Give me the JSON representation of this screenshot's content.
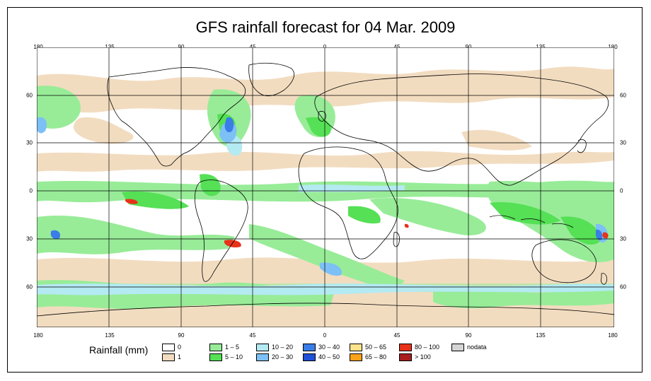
{
  "title": "GFS rainfall forecast for 04 Mar. 2009",
  "axes": {
    "longitude_ticks": [
      "180",
      "135",
      "90",
      "45",
      "0",
      "45",
      "90",
      "135",
      "180"
    ],
    "latitude_ticks": [
      "60",
      "30",
      "0",
      "30",
      "60"
    ]
  },
  "legend": {
    "title": "Rainfall (mm)",
    "items": [
      {
        "label": "0",
        "color": "#ffffff"
      },
      {
        "label": "1",
        "color": "#f2dcc0"
      },
      {
        "label": "1 – 5",
        "color": "#98ec98"
      },
      {
        "label": "5 – 10",
        "color": "#55e055"
      },
      {
        "label": "10 – 20",
        "color": "#b4eaf2"
      },
      {
        "label": "20 – 30",
        "color": "#7cc0f5"
      },
      {
        "label": "30 – 40",
        "color": "#3a7de8"
      },
      {
        "label": "40 – 50",
        "color": "#1e50d8"
      },
      {
        "label": "50 – 65",
        "color": "#fde28c"
      },
      {
        "label": "65 – 80",
        "color": "#f9a21a"
      },
      {
        "label": "80 – 100",
        "color": "#e8321a"
      },
      {
        "label": "> 100",
        "color": "#a81e1e"
      },
      {
        "label": "nodata",
        "color": "#d4d4d4"
      }
    ]
  },
  "colors": {
    "land_outline": "#000000",
    "grid": "#000000"
  }
}
